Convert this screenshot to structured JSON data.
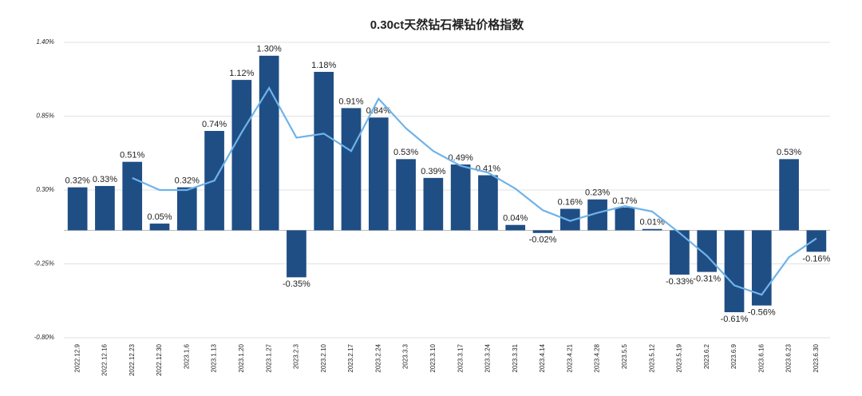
{
  "chart_data": {
    "type": "bar",
    "title": "0.30ct天然钻石裸钻价格指数",
    "categories": [
      "2022.12.9",
      "2022.12.16",
      "2022.12.23",
      "2022.12.30",
      "2023.1.6",
      "2023.1.13",
      "2023.1.20",
      "2023.1.27",
      "2023.2.3",
      "2023.2.10",
      "2023.2.17",
      "2023.2.24",
      "2023.3.3",
      "2023.3.10",
      "2023.3.17",
      "2023.3.24",
      "2023.3.31",
      "2023.4.14",
      "2023.4.21",
      "2023.4.28",
      "2023.5.5",
      "2023.5.12",
      "2023.5.19",
      "2023.6.2",
      "2023.6.9",
      "2023.6.16",
      "2023.6.23",
      "2023.6.30"
    ],
    "series": [
      {
        "type": "bar",
        "color": "#1f4e85",
        "values": [
          0.32,
          0.33,
          0.51,
          0.05,
          0.32,
          0.74,
          1.12,
          1.3,
          -0.35,
          1.18,
          0.91,
          0.84,
          0.53,
          0.39,
          0.49,
          0.41,
          0.04,
          -0.02,
          0.16,
          0.23,
          0.17,
          0.01,
          -0.33,
          -0.31,
          -0.61,
          -0.56,
          0.53,
          -0.16
        ],
        "value_labels": [
          "0.32%",
          "0.33%",
          "0.51%",
          "0.05%",
          "0.32%",
          "0.74%",
          "1.12%",
          "1.30%",
          "-0.35%",
          "1.18%",
          "0.91%",
          "0.84%",
          "0.53%",
          "0.39%",
          "0.49%",
          "0.41%",
          "0.04%",
          "-0.02%",
          "0.16%",
          "0.23%",
          "0.17%",
          "0.01%",
          "-0.33%",
          "-0.31%",
          "-0.61%",
          "-0.56%",
          "0.53%",
          "-0.16%"
        ]
      },
      {
        "type": "line",
        "color": "#6fb3ea",
        "values": [
          null,
          null,
          0.39,
          0.3,
          0.3,
          0.37,
          0.73,
          1.06,
          0.69,
          0.72,
          0.59,
          0.98,
          0.76,
          0.59,
          0.48,
          0.43,
          0.31,
          0.15,
          0.07,
          0.13,
          0.18,
          0.14,
          -0.02,
          -0.19,
          -0.41,
          -0.48,
          -0.2,
          -0.06
        ]
      }
    ],
    "ylim": [
      -0.8,
      1.4
    ],
    "yticks": [
      {
        "value": -0.8,
        "label": "-0.80%"
      },
      {
        "value": -0.25,
        "label": "-0.25%"
      },
      {
        "value": 0.3,
        "label": "0.30%"
      },
      {
        "value": 0.85,
        "label": "0.85%"
      },
      {
        "value": 1.4,
        "label": "1.40%"
      }
    ],
    "grid": true
  }
}
